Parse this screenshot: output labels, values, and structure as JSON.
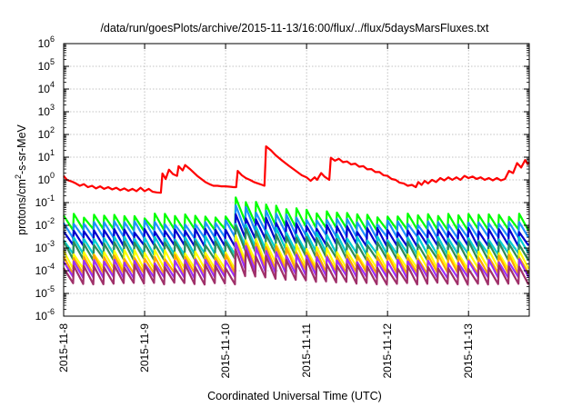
{
  "chart_data": {
    "type": "line",
    "title": "/data/run/goesPlots/archive/2015-11-13/16:00/flux/../flux/5daysMarsFluxes.txt",
    "xlabel": "Coordinated Universal Time (UTC)",
    "ylabel_main": "protons/cm",
    "ylabel_sup": "2",
    "ylabel_rest": "-s-sr-MeV",
    "yscale": "log",
    "ylim": [
      1e-06,
      1000000.0
    ],
    "yticks": [
      {
        "base": "10",
        "exp": "-6",
        "value": 1e-06
      },
      {
        "base": "10",
        "exp": "-5",
        "value": 1e-05
      },
      {
        "base": "10",
        "exp": "-4",
        "value": 0.0001
      },
      {
        "base": "10",
        "exp": "-3",
        "value": 0.001
      },
      {
        "base": "10",
        "exp": "-2",
        "value": 0.01
      },
      {
        "base": "10",
        "exp": "-1",
        "value": 0.1
      },
      {
        "base": "10",
        "exp": "0",
        "value": 1
      },
      {
        "base": "10",
        "exp": "1",
        "value": 10.0
      },
      {
        "base": "10",
        "exp": "2",
        "value": 100.0
      },
      {
        "base": "10",
        "exp": "3",
        "value": 1000.0
      },
      {
        "base": "10",
        "exp": "4",
        "value": 10000.0
      },
      {
        "base": "10",
        "exp": "5",
        "value": 100000.0
      },
      {
        "base": "10",
        "exp": "6",
        "value": 1000000.0
      }
    ],
    "xlim": [
      0,
      5.75
    ],
    "xunit": "days since 2015-11-08",
    "xticks": [
      {
        "label": "2015-11-8",
        "value": 0
      },
      {
        "label": "2015-11-9",
        "value": 1
      },
      {
        "label": "2015-11-10",
        "value": 2
      },
      {
        "label": "2015-11-11",
        "value": 3
      },
      {
        "label": "2015-11-12",
        "value": 4
      },
      {
        "label": "2015-11-13",
        "value": 5
      }
    ],
    "grid": true,
    "series": [
      {
        "color": "#ff0000",
        "points": [
          [
            0.0,
            1.5
          ],
          [
            0.04,
            1.0
          ],
          [
            0.1,
            0.85
          ],
          [
            0.15,
            0.7
          ],
          [
            0.2,
            0.55
          ],
          [
            0.25,
            0.65
          ],
          [
            0.3,
            0.48
          ],
          [
            0.35,
            0.55
          ],
          [
            0.4,
            0.42
          ],
          [
            0.45,
            0.52
          ],
          [
            0.5,
            0.4
          ],
          [
            0.55,
            0.48
          ],
          [
            0.6,
            0.38
          ],
          [
            0.65,
            0.45
          ],
          [
            0.7,
            0.35
          ],
          [
            0.75,
            0.42
          ],
          [
            0.8,
            0.33
          ],
          [
            0.85,
            0.4
          ],
          [
            0.9,
            0.32
          ],
          [
            0.95,
            0.45
          ],
          [
            1.0,
            0.32
          ],
          [
            1.05,
            0.4
          ],
          [
            1.1,
            0.3
          ],
          [
            1.15,
            0.28
          ],
          [
            1.2,
            0.27
          ],
          [
            1.22,
            1.9
          ],
          [
            1.26,
            1.1
          ],
          [
            1.3,
            2.8
          ],
          [
            1.35,
            1.8
          ],
          [
            1.4,
            1.5
          ],
          [
            1.42,
            4.0
          ],
          [
            1.47,
            2.6
          ],
          [
            1.5,
            4.5
          ],
          [
            1.56,
            3.0
          ],
          [
            1.6,
            2.2
          ],
          [
            1.65,
            1.5
          ],
          [
            1.7,
            1.1
          ],
          [
            1.75,
            0.8
          ],
          [
            1.8,
            0.65
          ],
          [
            1.85,
            0.55
          ],
          [
            1.9,
            0.55
          ],
          [
            1.95,
            0.52
          ],
          [
            2.0,
            0.52
          ],
          [
            2.05,
            0.5
          ],
          [
            2.1,
            0.48
          ],
          [
            2.13,
            0.48
          ],
          [
            2.15,
            2.5
          ],
          [
            2.2,
            1.6
          ],
          [
            2.25,
            1.2
          ],
          [
            2.3,
            1.0
          ],
          [
            2.35,
            0.8
          ],
          [
            2.4,
            0.7
          ],
          [
            2.45,
            0.6
          ],
          [
            2.48,
            0.55
          ],
          [
            2.5,
            30
          ],
          [
            2.56,
            20
          ],
          [
            2.62,
            12
          ],
          [
            2.7,
            7.0
          ],
          [
            2.78,
            4.2
          ],
          [
            2.86,
            2.6
          ],
          [
            2.94,
            1.6
          ],
          [
            3.0,
            1.3
          ],
          [
            3.05,
            0.9
          ],
          [
            3.1,
            1.3
          ],
          [
            3.13,
            1.0
          ],
          [
            3.18,
            2.0
          ],
          [
            3.22,
            1.4
          ],
          [
            3.28,
            1.0
          ],
          [
            3.3,
            9.5
          ],
          [
            3.35,
            7.0
          ],
          [
            3.4,
            8.5
          ],
          [
            3.45,
            6.0
          ],
          [
            3.5,
            6.5
          ],
          [
            3.55,
            4.8
          ],
          [
            3.6,
            5.2
          ],
          [
            3.65,
            3.8
          ],
          [
            3.7,
            4.0
          ],
          [
            3.75,
            2.9
          ],
          [
            3.8,
            3.0
          ],
          [
            3.85,
            2.2
          ],
          [
            3.9,
            2.2
          ],
          [
            3.95,
            1.6
          ],
          [
            4.0,
            1.5
          ],
          [
            4.05,
            1.1
          ],
          [
            4.1,
            1.0
          ],
          [
            4.15,
            0.75
          ],
          [
            4.2,
            0.7
          ],
          [
            4.25,
            0.55
          ],
          [
            4.3,
            0.6
          ],
          [
            4.35,
            0.48
          ],
          [
            4.38,
            0.8
          ],
          [
            4.42,
            0.6
          ],
          [
            4.46,
            0.9
          ],
          [
            4.5,
            0.7
          ],
          [
            4.55,
            1.0
          ],
          [
            4.6,
            0.8
          ],
          [
            4.65,
            1.2
          ],
          [
            4.7,
            0.95
          ],
          [
            4.75,
            1.3
          ],
          [
            4.8,
            1.0
          ],
          [
            4.85,
            1.3
          ],
          [
            4.9,
            1.0
          ],
          [
            4.95,
            1.5
          ],
          [
            5.0,
            1.2
          ],
          [
            5.05,
            1.4
          ],
          [
            5.1,
            1.1
          ],
          [
            5.15,
            1.3
          ],
          [
            5.2,
            1.0
          ],
          [
            5.25,
            1.2
          ],
          [
            5.3,
            0.95
          ],
          [
            5.35,
            1.2
          ],
          [
            5.4,
            0.95
          ],
          [
            5.45,
            1.1
          ],
          [
            5.5,
            2.5
          ],
          [
            5.55,
            2.0
          ],
          [
            5.6,
            5.5
          ],
          [
            5.65,
            3.5
          ],
          [
            5.7,
            7.5
          ],
          [
            5.73,
            5.0
          ],
          [
            5.75,
            6.0
          ]
        ]
      },
      {
        "color": "#00ff00",
        "base": 0.014,
        "amp": 0.8,
        "seed": 1
      },
      {
        "color": "#1e90ff",
        "base": 0.0065,
        "amp": 1.0,
        "seed": 2
      },
      {
        "color": "#0000cd",
        "base": 0.0028,
        "amp": 1.1,
        "seed": 3
      },
      {
        "color": "#00ced1",
        "base": 0.0012,
        "amp": 1.2,
        "seed": 4
      },
      {
        "color": "#2e8b57",
        "base": 0.0007,
        "amp": 1.2,
        "seed": 5
      },
      {
        "color": "#ffff00",
        "base": 0.00028,
        "amp": 1.3,
        "seed": 6
      },
      {
        "color": "#ffa500",
        "base": 0.00017,
        "amp": 1.3,
        "seed": 7
      },
      {
        "color": "#9b30ff",
        "base": 0.00011,
        "amp": 1.3,
        "seed": 8
      },
      {
        "color": "#a0306a",
        "base": 6e-05,
        "amp": 1.4,
        "seed": 9
      }
    ],
    "event": {
      "day": 2.05,
      "height_factor": 6
    }
  }
}
